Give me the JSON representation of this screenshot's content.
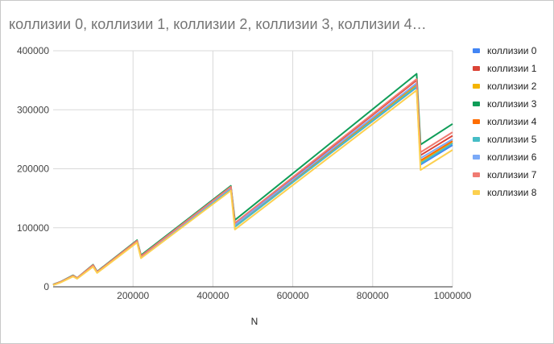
{
  "chart_data": {
    "type": "line",
    "title": "коллизии 0, коллизии 1, коллизии 2, коллизии 3, коллизии 4…",
    "xlabel": "N",
    "ylabel": "",
    "xlim": [
      0,
      1000000
    ],
    "ylim": [
      0,
      400000
    ],
    "xticks": [
      200000,
      400000,
      600000,
      800000,
      1000000
    ],
    "yticks": [
      0,
      100000,
      200000,
      300000,
      400000
    ],
    "grid": true,
    "legend_position": "right",
    "x": [
      0,
      20000,
      50000,
      60000,
      100000,
      110000,
      210000,
      220000,
      445000,
      455000,
      910000,
      920000,
      1000000
    ],
    "series": [
      {
        "name": "коллизии 0",
        "color": "#4285f4",
        "values": [
          3000,
          8000,
          18000,
          14000,
          35000,
          24000,
          76000,
          50000,
          166000,
          102000,
          338000,
          207000,
          240000
        ]
      },
      {
        "name": "коллизии 1",
        "color": "#db4437",
        "values": [
          3500,
          8600,
          18800,
          14600,
          36500,
          25000,
          77500,
          51500,
          169000,
          107000,
          350000,
          223000,
          256000
        ]
      },
      {
        "name": "коллизии 2",
        "color": "#f4b400",
        "values": [
          3200,
          8200,
          18200,
          14200,
          35500,
          24500,
          76500,
          50500,
          167000,
          103000,
          341000,
          211000,
          244000
        ]
      },
      {
        "name": "коллизии 3",
        "color": "#0f9d58",
        "values": [
          4000,
          9000,
          19500,
          15000,
          37500,
          26000,
          79000,
          53500,
          171000,
          113000,
          361000,
          241000,
          276000
        ]
      },
      {
        "name": "коллизии 4",
        "color": "#ff6d01",
        "values": [
          3300,
          8300,
          18400,
          14300,
          35800,
          24700,
          76800,
          50800,
          167500,
          104000,
          344000,
          214000,
          247000
        ]
      },
      {
        "name": "коллизии 5",
        "color": "#46bdc6",
        "values": [
          3100,
          8100,
          18100,
          14100,
          35200,
          24300,
          76200,
          50200,
          166500,
          101500,
          339000,
          209000,
          243000
        ]
      },
      {
        "name": "коллизии 6",
        "color": "#7baaf7",
        "values": [
          3400,
          8400,
          18600,
          14400,
          36000,
          24800,
          77000,
          51000,
          168000,
          105000,
          345000,
          218000,
          250000
        ]
      },
      {
        "name": "коллизии 7",
        "color": "#f07b72",
        "values": [
          3600,
          8700,
          19000,
          14700,
          36800,
          25300,
          78000,
          52000,
          169500,
          108000,
          352000,
          228000,
          262000
        ]
      },
      {
        "name": "коллизии 8",
        "color": "#fcd04f",
        "values": [
          2800,
          7700,
          17500,
          13700,
          34000,
          23500,
          75000,
          48500,
          163000,
          97000,
          333000,
          198000,
          232000
        ]
      }
    ]
  }
}
